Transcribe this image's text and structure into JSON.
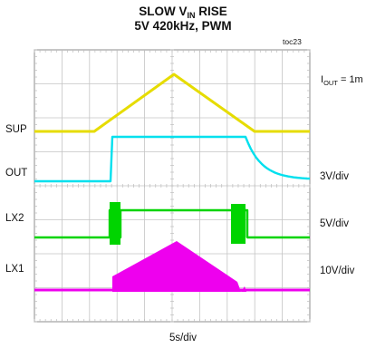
{
  "chart_data": {
    "type": "line",
    "title_line1": "SLOW V",
    "title_sub": "IN",
    "title_line1_suffix": " RISE",
    "title_line2": "5V 420kHz, PWM",
    "figure_id": "toc23",
    "condition": {
      "prefix": "I",
      "sub": "OUT",
      "suffix": " = 1m"
    },
    "xlabel": "5s/div",
    "grid": true,
    "divisions": {
      "x": 10,
      "y": 8
    },
    "channels": [
      {
        "name": "SUP",
        "color": "#e6dc00",
        "scale": ""
      },
      {
        "name": "OUT",
        "color": "#00e0ee",
        "scale": "3V/div"
      },
      {
        "name": "LX2",
        "color": "#00d400",
        "scale": "5V/div"
      },
      {
        "name": "LX1",
        "color": "#ee00ee",
        "scale": "10V/div"
      }
    ]
  }
}
